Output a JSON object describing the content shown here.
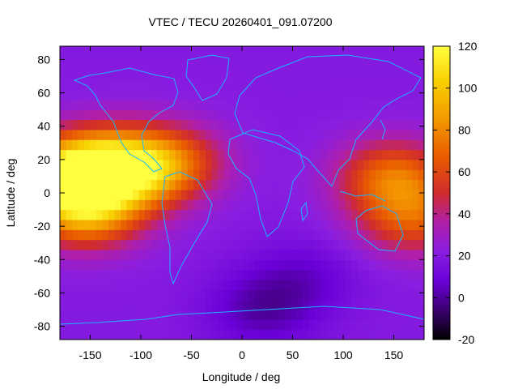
{
  "chart_data": {
    "type": "heatmap",
    "title": "VTEC / TECU 20260401_091.07200",
    "xlabel": "Longitude / deg",
    "ylabel": "Latitude / deg",
    "xlim": [
      -180,
      180
    ],
    "ylim": [
      -88,
      88
    ],
    "x_ticks": [
      -150,
      -100,
      -50,
      0,
      50,
      100,
      150
    ],
    "y_ticks": [
      80,
      60,
      40,
      20,
      0,
      -20,
      -40,
      -60,
      -80
    ],
    "colorbar": {
      "range": [
        -20,
        120
      ],
      "ticks": [
        120,
        100,
        80,
        60,
        40,
        20,
        0,
        -20
      ],
      "palette": [
        "#000000",
        "#3a006e",
        "#6a00d8",
        "#8a1ee0",
        "#b01fa8",
        "#d02c2c",
        "#e85a00",
        "#f39800",
        "#f8d000",
        "#ffff40"
      ]
    },
    "field": {
      "background_value": 20,
      "features": [
        {
          "lon": -170,
          "lat": 12,
          "value": 95
        },
        {
          "lon": -155,
          "lat": -10,
          "value": 90
        },
        {
          "lon": -130,
          "lat": 18,
          "value": 70
        },
        {
          "lon": -100,
          "lat": 12,
          "value": 58
        },
        {
          "lon": -70,
          "lat": 20,
          "value": 55
        },
        {
          "lon": 150,
          "lat": 10,
          "value": 70
        },
        {
          "lon": 170,
          "lat": -15,
          "value": 62
        },
        {
          "lon": 20,
          "lat": -70,
          "value": 2
        },
        {
          "lon": 60,
          "lat": -50,
          "value": 8
        }
      ]
    },
    "overlay": "coastlines",
    "grid": false,
    "legend": "colorbar-right"
  }
}
